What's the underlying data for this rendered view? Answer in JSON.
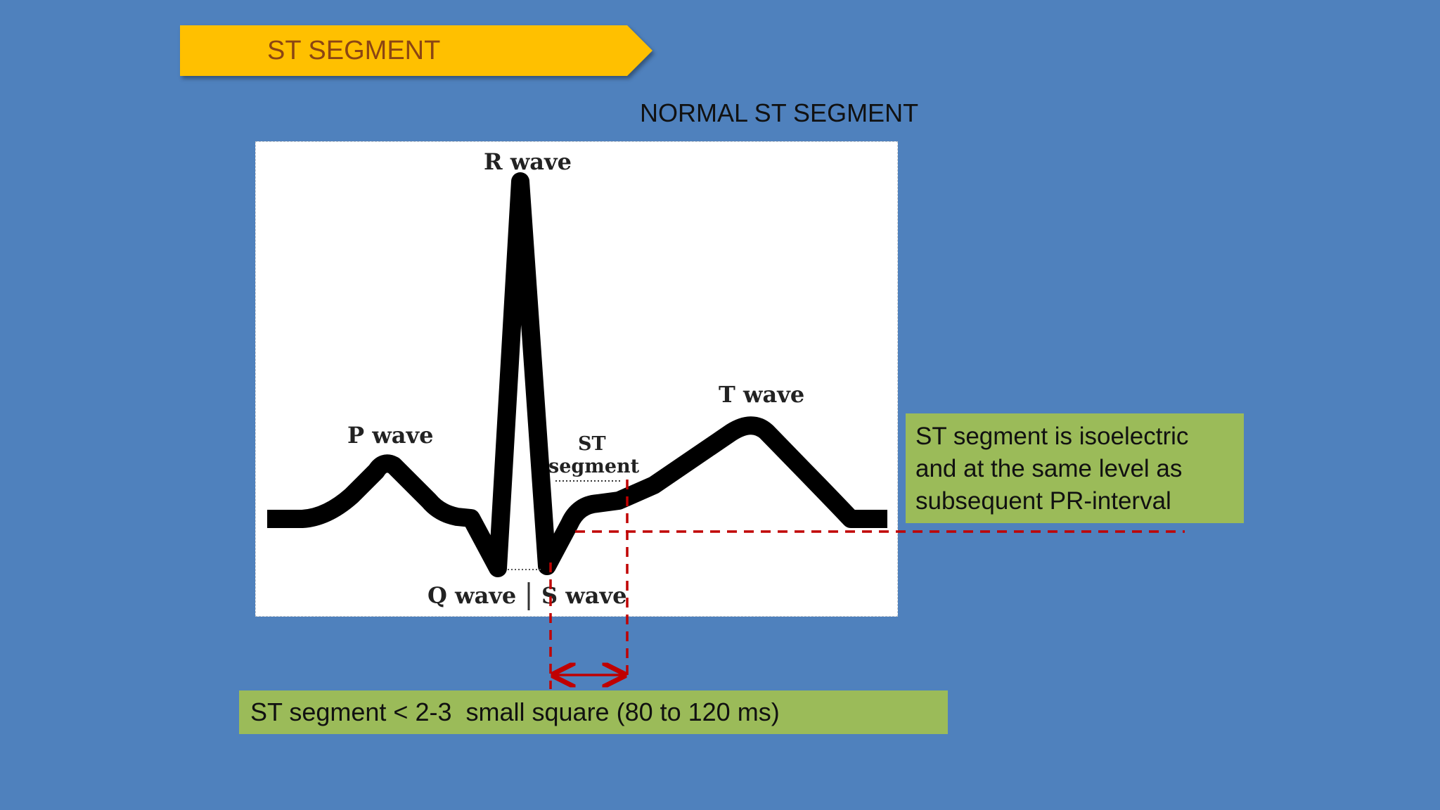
{
  "header": {
    "title": "ST SEGMENT"
  },
  "diagram": {
    "title": "NORMAL ST SEGMENT",
    "labels": {
      "r_wave": "R wave",
      "p_wave": "P wave",
      "t_wave": "T wave",
      "st_line1": "ST",
      "st_line2": "segment",
      "q_wave": "Q wave",
      "s_wave": "S wave"
    },
    "colors": {
      "background": "#4f81bd",
      "banner": "#ffc000",
      "note": "#9bbb59",
      "marker": "#c00000"
    }
  },
  "notes": {
    "isoelectric": "ST segment is isoelectric and at the same level as subsequent PR-interval",
    "duration": "ST segment < 2-3  small square (80 to 120 ms)"
  }
}
